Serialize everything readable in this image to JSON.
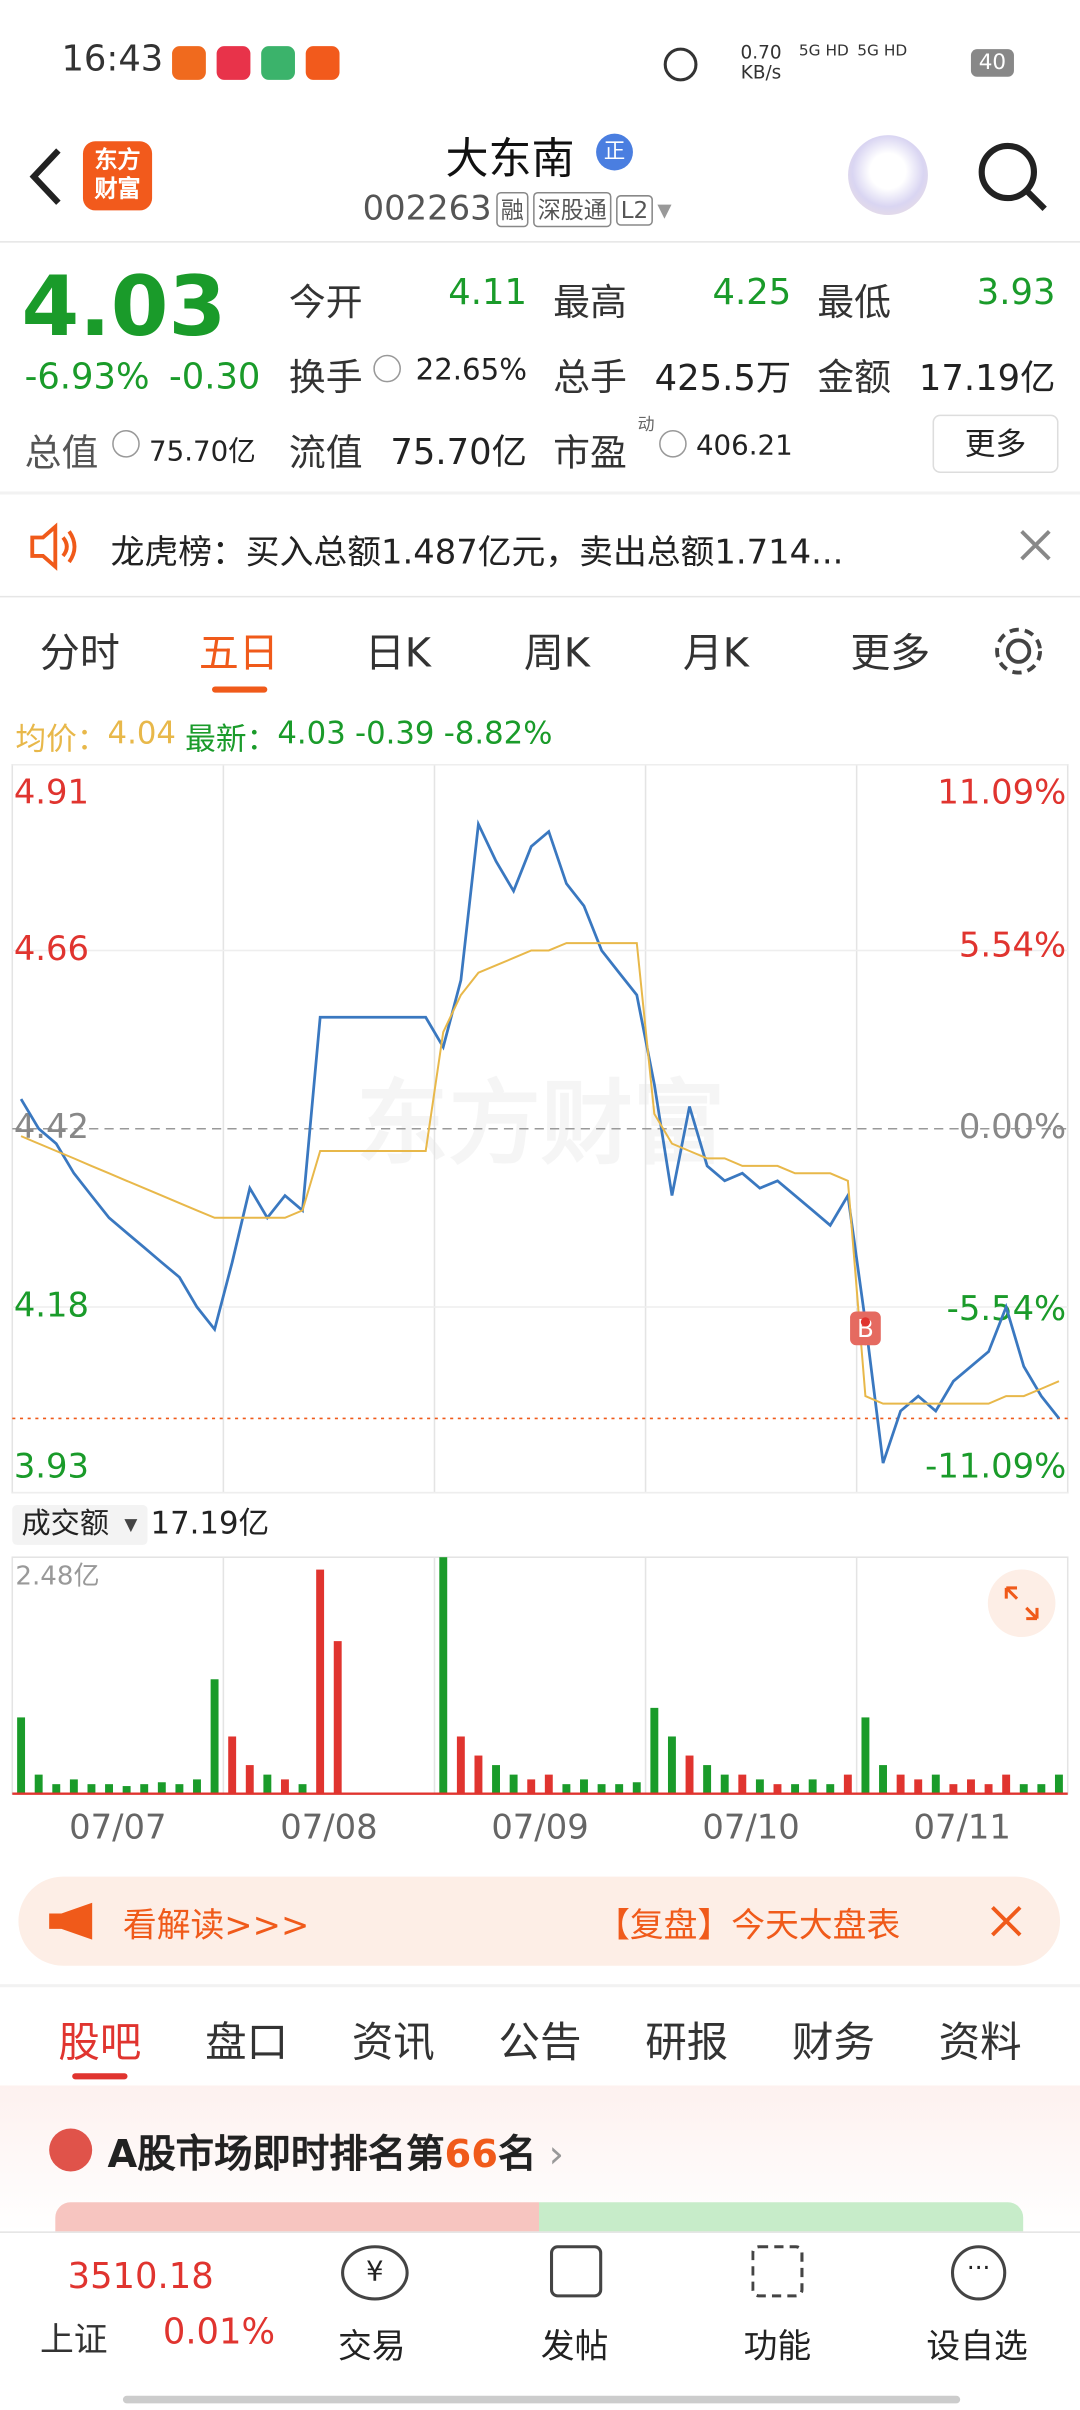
{
  "status_bar": {
    "time": "16:43",
    "net_speed": "0.70",
    "net_unit": "KB/s",
    "signal_1": "5G HD",
    "signal_2": "5G HD",
    "battery": "40"
  },
  "header": {
    "logo_line_1": "东方",
    "logo_line_2": "财富",
    "name": "大东南",
    "badge": "正",
    "code": "002263",
    "tags": [
      "融",
      "深股通",
      "L2"
    ]
  },
  "quote": {
    "price": "4.03",
    "change_pct": "-6.93%",
    "change": "-0.30",
    "fields": [
      {
        "label": "今开",
        "value": "4.11"
      },
      {
        "label": "最高",
        "value": "4.25"
      },
      {
        "label": "最低",
        "value": "3.93"
      },
      {
        "label": "换手",
        "value": "22.65%"
      },
      {
        "label": "总手",
        "value": "425.5万"
      },
      {
        "label": "金额",
        "value": "17.19亿"
      },
      {
        "label": "总值",
        "value": "75.70亿"
      },
      {
        "label": "流值",
        "value": "75.70亿"
      },
      {
        "label": "市盈",
        "value": "406.21"
      }
    ],
    "pe_note": "动",
    "more": "更多"
  },
  "notice": {
    "text": "龙虎榜：买入总额1.487亿元，卖出总额1.714..."
  },
  "tabs": {
    "items": [
      "分时",
      "五日",
      "日K",
      "周K",
      "月K",
      "更多"
    ],
    "active": 1
  },
  "chart_data": [
    {
      "type": "line",
      "watermark": "东方财富",
      "legend": {
        "avg": 4.04,
        "latest": 4.03,
        "change": -0.39,
        "change_pct": "-8.82%"
      },
      "trade_marker": {
        "label": "B",
        "x": 48
      },
      "xlim": [
        -0.5,
        59.5
      ],
      "x": [
        0,
        1,
        2,
        3,
        4,
        5,
        6,
        7,
        8,
        9,
        10,
        11,
        12,
        13,
        14,
        15,
        16,
        17,
        18,
        19,
        20,
        21,
        22,
        23,
        24,
        25,
        26,
        27,
        28,
        29,
        30,
        31,
        32,
        33,
        34,
        35,
        36,
        37,
        38,
        39,
        40,
        41,
        42,
        43,
        44,
        45,
        46,
        47,
        48,
        49,
        50,
        51,
        52,
        53,
        54,
        55,
        56,
        57,
        58,
        59
      ],
      "ylim": [
        3.93,
        4.91
      ],
      "yticks": [
        4.91,
        4.66,
        4.42,
        4.18,
        3.93
      ],
      "y2lim": [
        -11.09,
        11.09
      ],
      "y2ticks": [
        {
          "value": 11.09,
          "label": "11.09%"
        },
        {
          "value": 5.54,
          "label": "5.54%"
        },
        {
          "value": 0,
          "label": "0.00%"
        },
        {
          "value": -5.54,
          "label": "-5.54%"
        },
        {
          "value": -11.09,
          "label": "-11.09%"
        }
      ],
      "series": [
        {
          "name": "最新：",
          "color": "#3a78c0",
          "values": [
            4.46,
            4.42,
            4.4,
            4.36,
            4.33,
            4.3,
            4.28,
            4.26,
            4.24,
            4.22,
            4.18,
            4.15,
            4.24,
            4.34,
            4.3,
            4.33,
            4.31,
            4.57,
            4.57,
            4.57,
            4.57,
            4.57,
            4.57,
            4.57,
            4.53,
            4.62,
            4.83,
            4.78,
            4.74,
            4.8,
            4.82,
            4.75,
            4.72,
            4.66,
            4.63,
            4.6,
            4.48,
            4.33,
            4.45,
            4.37,
            4.35,
            4.36,
            4.34,
            4.35,
            4.33,
            4.31,
            4.29,
            4.33,
            4.16,
            3.97,
            4.04,
            4.06,
            4.04,
            4.08,
            4.1,
            4.12,
            4.18,
            4.1,
            4.06,
            4.03
          ]
        },
        {
          "name": "均价：",
          "color": "#e8b84a",
          "values": [
            4.41,
            4.4,
            4.39,
            4.38,
            4.37,
            4.36,
            4.35,
            4.34,
            4.33,
            4.32,
            4.31,
            4.3,
            4.3,
            4.3,
            4.3,
            4.3,
            4.31,
            4.39,
            4.39,
            4.39,
            4.39,
            4.39,
            4.39,
            4.39,
            4.55,
            4.6,
            4.63,
            4.64,
            4.65,
            4.66,
            4.66,
            4.67,
            4.67,
            4.67,
            4.67,
            4.67,
            4.44,
            4.4,
            4.39,
            4.38,
            4.38,
            4.37,
            4.37,
            4.37,
            4.36,
            4.36,
            4.36,
            4.35,
            4.06,
            4.05,
            4.05,
            4.05,
            4.05,
            4.05,
            4.05,
            4.05,
            4.06,
            4.06,
            4.07,
            4.08
          ]
        }
      ]
    },
    {
      "type": "bar",
      "title": "成交额",
      "total": "17.19亿",
      "xlim": [
        -0.5,
        59.5
      ],
      "x": [
        0,
        1,
        2,
        3,
        4,
        5,
        6,
        7,
        8,
        9,
        10,
        11,
        12,
        13,
        14,
        15,
        16,
        17,
        18,
        19,
        20,
        21,
        22,
        23,
        24,
        25,
        26,
        27,
        28,
        29,
        30,
        31,
        32,
        33,
        34,
        35,
        36,
        37,
        38,
        39,
        40,
        41,
        42,
        43,
        44,
        45,
        46,
        47,
        48,
        49,
        50,
        51,
        52,
        53,
        54,
        55,
        56,
        57,
        58,
        59
      ],
      "xticks": [
        {
          "value": 5.5,
          "label": "07/07"
        },
        {
          "value": 17.5,
          "label": "07/08"
        },
        {
          "value": 29.5,
          "label": "07/09"
        },
        {
          "value": 41.5,
          "label": "07/10"
        },
        {
          "value": 53.5,
          "label": "07/11"
        }
      ],
      "ylim": [
        0,
        2.48
      ],
      "yticks": [
        {
          "value": 2.48,
          "label": "2.48亿"
        }
      ],
      "values": [
        0.8,
        0.2,
        0.1,
        0.15,
        0.1,
        0.1,
        0.08,
        0.1,
        0.12,
        0.1,
        0.15,
        1.2,
        0.6,
        0.3,
        0.2,
        0.15,
        0.1,
        2.35,
        1.6,
        0,
        0,
        0,
        0,
        0,
        2.48,
        0.6,
        0.4,
        0.3,
        0.2,
        0.15,
        0.2,
        0.1,
        0.15,
        0.1,
        0.1,
        0.12,
        0.9,
        0.6,
        0.4,
        0.3,
        0.2,
        0.2,
        0.15,
        0.1,
        0.1,
        0.15,
        0.1,
        0.2,
        0.8,
        0.3,
        0.2,
        0.15,
        0.2,
        0.1,
        0.15,
        0.1,
        0.2,
        0.1,
        0.1,
        0.2
      ]
    }
  ],
  "banner": {
    "left": "看解读>>>",
    "right": "【复盘】今天大盘表"
  },
  "section_tabs": {
    "items": [
      "股吧",
      "盘口",
      "资讯",
      "公告",
      "研报",
      "财务",
      "资料"
    ],
    "active": 0
  },
  "rank": {
    "prefix": "A股市场即时排名第",
    "number": "66",
    "suffix": "名"
  },
  "bottom_nav": {
    "index_value": "3510.18",
    "index_name": "上证",
    "index_change": "0.01%",
    "items": [
      "交易",
      "发帖",
      "功能",
      "设自选"
    ]
  }
}
